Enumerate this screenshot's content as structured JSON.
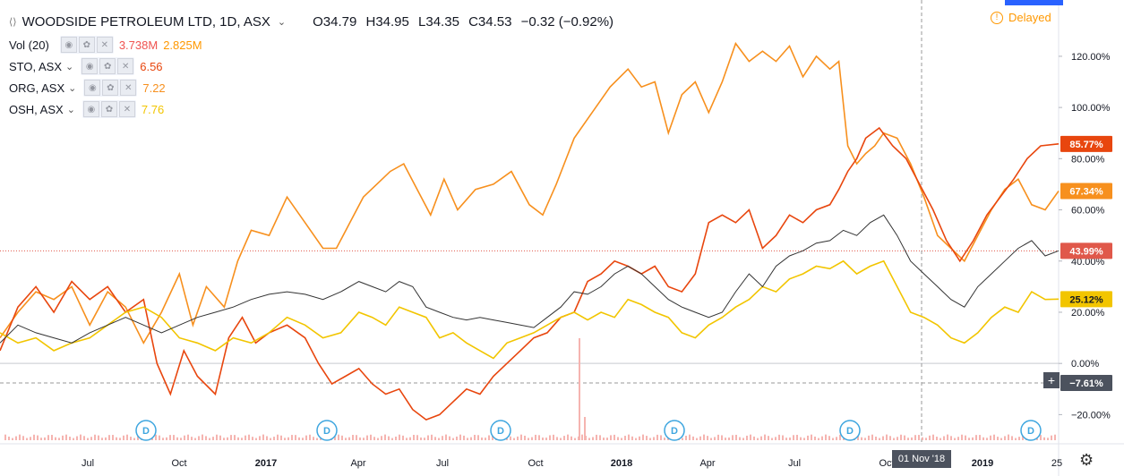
{
  "legend": {
    "main": {
      "symbol": "WOODSIDE PETROLEUM LTD, 1D, ASX",
      "open": "O34.79",
      "high": "H34.95",
      "low": "L34.35",
      "close": "C34.53",
      "change": "−0.32 (−0.92%)"
    },
    "vol": {
      "label": "Vol (20)",
      "value1": "3.738M",
      "value2": "2.825M",
      "color1": "#ef5350",
      "color2": "#ff9800"
    },
    "rows": [
      {
        "name": "STO, ASX",
        "value": "6.56",
        "color": "#e8460e"
      },
      {
        "name": "ORG, ASX",
        "value": "7.22",
        "color": "#f7901e"
      },
      {
        "name": "OSH, ASX",
        "value": "7.76",
        "color": "#f2c500"
      }
    ],
    "chevron_icon": "chevron-down-icon",
    "control_icons": [
      "eye-icon",
      "gear-icon",
      "close-icon"
    ]
  },
  "delayed": {
    "label": "Delayed",
    "icon": "exclamation-icon"
  },
  "crosshair_date": "01 Nov '18",
  "plus_icon": "plus-icon",
  "settings_icon": "gear-icon",
  "chart_data": {
    "type": "line",
    "x_ticks": [
      "Jul",
      "Oct",
      "2017",
      "Apr",
      "Jul",
      "Oct",
      "2018",
      "Apr",
      "Jul",
      "Oct",
      "2019",
      "25"
    ],
    "y_ticks": [
      "120.00%",
      "100.00%",
      "80.00%",
      "60.00%",
      "40.00%",
      "20.00%",
      "0.00%",
      "−20.00%"
    ],
    "ylim": [
      -30,
      135
    ],
    "xlim": [
      0,
      1180
    ],
    "series": [
      {
        "name": "ORG, ASX",
        "color": "#f7901e",
        "label": "67.34%",
        "values": [
          [
            0,
            10
          ],
          [
            20,
            20
          ],
          [
            40,
            28
          ],
          [
            60,
            25
          ],
          [
            80,
            30
          ],
          [
            100,
            15
          ],
          [
            120,
            28
          ],
          [
            140,
            22
          ],
          [
            160,
            8
          ],
          [
            180,
            20
          ],
          [
            200,
            35
          ],
          [
            215,
            15
          ],
          [
            230,
            30
          ],
          [
            250,
            22
          ],
          [
            265,
            40
          ],
          [
            280,
            52
          ],
          [
            300,
            50
          ],
          [
            320,
            65
          ],
          [
            340,
            55
          ],
          [
            360,
            45
          ],
          [
            375,
            45
          ],
          [
            390,
            55
          ],
          [
            405,
            65
          ],
          [
            420,
            70
          ],
          [
            435,
            75
          ],
          [
            450,
            78
          ],
          [
            465,
            68
          ],
          [
            480,
            58
          ],
          [
            495,
            72
          ],
          [
            510,
            60
          ],
          [
            530,
            68
          ],
          [
            550,
            70
          ],
          [
            570,
            75
          ],
          [
            590,
            62
          ],
          [
            605,
            58
          ],
          [
            620,
            70
          ],
          [
            640,
            88
          ],
          [
            660,
            98
          ],
          [
            680,
            108
          ],
          [
            700,
            115
          ],
          [
            715,
            108
          ],
          [
            730,
            110
          ],
          [
            745,
            90
          ],
          [
            760,
            105
          ],
          [
            775,
            110
          ],
          [
            790,
            98
          ],
          [
            805,
            110
          ],
          [
            820,
            125
          ],
          [
            835,
            118
          ],
          [
            850,
            122
          ],
          [
            865,
            118
          ],
          [
            880,
            124
          ],
          [
            895,
            112
          ],
          [
            910,
            120
          ],
          [
            925,
            115
          ],
          [
            935,
            118
          ],
          [
            945,
            85
          ],
          [
            955,
            78
          ],
          [
            965,
            82
          ],
          [
            975,
            85
          ],
          [
            985,
            90
          ],
          [
            1000,
            88
          ],
          [
            1015,
            78
          ],
          [
            1030,
            65
          ],
          [
            1045,
            50
          ],
          [
            1060,
            45
          ],
          [
            1075,
            40
          ],
          [
            1090,
            50
          ],
          [
            1105,
            60
          ],
          [
            1120,
            68
          ],
          [
            1135,
            72
          ],
          [
            1150,
            62
          ],
          [
            1165,
            60
          ],
          [
            1180,
            67.34
          ]
        ]
      },
      {
        "name": "STO, ASX",
        "color": "#e8460e",
        "label": "85.77%",
        "values": [
          [
            0,
            5
          ],
          [
            20,
            22
          ],
          [
            40,
            30
          ],
          [
            60,
            20
          ],
          [
            80,
            32
          ],
          [
            100,
            25
          ],
          [
            120,
            30
          ],
          [
            140,
            20
          ],
          [
            160,
            25
          ],
          [
            175,
            0
          ],
          [
            190,
            -12
          ],
          [
            205,
            5
          ],
          [
            220,
            -5
          ],
          [
            240,
            -12
          ],
          [
            255,
            10
          ],
          [
            270,
            18
          ],
          [
            285,
            8
          ],
          [
            300,
            12
          ],
          [
            320,
            15
          ],
          [
            340,
            10
          ],
          [
            355,
            0
          ],
          [
            370,
            -8
          ],
          [
            385,
            -5
          ],
          [
            400,
            -2
          ],
          [
            415,
            -8
          ],
          [
            430,
            -12
          ],
          [
            445,
            -10
          ],
          [
            460,
            -18
          ],
          [
            475,
            -22
          ],
          [
            490,
            -20
          ],
          [
            505,
            -15
          ],
          [
            520,
            -10
          ],
          [
            535,
            -12
          ],
          [
            550,
            -5
          ],
          [
            565,
            0
          ],
          [
            580,
            5
          ],
          [
            595,
            10
          ],
          [
            610,
            12
          ],
          [
            625,
            18
          ],
          [
            640,
            20
          ],
          [
            655,
            32
          ],
          [
            670,
            35
          ],
          [
            685,
            40
          ],
          [
            700,
            38
          ],
          [
            715,
            35
          ],
          [
            730,
            38
          ],
          [
            745,
            30
          ],
          [
            760,
            28
          ],
          [
            775,
            35
          ],
          [
            790,
            55
          ],
          [
            805,
            58
          ],
          [
            820,
            55
          ],
          [
            835,
            60
          ],
          [
            850,
            45
          ],
          [
            865,
            50
          ],
          [
            880,
            58
          ],
          [
            895,
            55
          ],
          [
            910,
            60
          ],
          [
            925,
            62
          ],
          [
            935,
            68
          ],
          [
            945,
            75
          ],
          [
            955,
            80
          ],
          [
            965,
            88
          ],
          [
            980,
            92
          ],
          [
            995,
            85
          ],
          [
            1010,
            80
          ],
          [
            1025,
            70
          ],
          [
            1040,
            60
          ],
          [
            1055,
            48
          ],
          [
            1070,
            40
          ],
          [
            1085,
            48
          ],
          [
            1100,
            58
          ],
          [
            1115,
            65
          ],
          [
            1130,
            72
          ],
          [
            1145,
            80
          ],
          [
            1160,
            85
          ],
          [
            1180,
            85.77
          ]
        ]
      },
      {
        "name": "OSH, ASX",
        "color": "#f2c500",
        "label": "25.12%",
        "values": [
          [
            0,
            12
          ],
          [
            20,
            8
          ],
          [
            40,
            10
          ],
          [
            60,
            5
          ],
          [
            80,
            8
          ],
          [
            100,
            10
          ],
          [
            120,
            15
          ],
          [
            140,
            20
          ],
          [
            160,
            22
          ],
          [
            180,
            18
          ],
          [
            200,
            10
          ],
          [
            220,
            8
          ],
          [
            240,
            5
          ],
          [
            260,
            10
          ],
          [
            280,
            8
          ],
          [
            300,
            12
          ],
          [
            320,
            18
          ],
          [
            340,
            15
          ],
          [
            360,
            10
          ],
          [
            380,
            12
          ],
          [
            400,
            20
          ],
          [
            415,
            18
          ],
          [
            430,
            15
          ],
          [
            445,
            22
          ],
          [
            460,
            20
          ],
          [
            475,
            18
          ],
          [
            490,
            10
          ],
          [
            505,
            12
          ],
          [
            520,
            8
          ],
          [
            535,
            5
          ],
          [
            550,
            2
          ],
          [
            565,
            8
          ],
          [
            580,
            10
          ],
          [
            595,
            12
          ],
          [
            610,
            15
          ],
          [
            625,
            18
          ],
          [
            640,
            20
          ],
          [
            655,
            17
          ],
          [
            670,
            20
          ],
          [
            685,
            18
          ],
          [
            700,
            25
          ],
          [
            715,
            23
          ],
          [
            730,
            20
          ],
          [
            745,
            18
          ],
          [
            760,
            12
          ],
          [
            775,
            10
          ],
          [
            790,
            15
          ],
          [
            805,
            18
          ],
          [
            820,
            22
          ],
          [
            835,
            25
          ],
          [
            850,
            30
          ],
          [
            865,
            28
          ],
          [
            880,
            33
          ],
          [
            895,
            35
          ],
          [
            910,
            38
          ],
          [
            925,
            37
          ],
          [
            940,
            40
          ],
          [
            955,
            35
          ],
          [
            970,
            38
          ],
          [
            985,
            40
          ],
          [
            1000,
            30
          ],
          [
            1015,
            20
          ],
          [
            1030,
            18
          ],
          [
            1045,
            15
          ],
          [
            1060,
            10
          ],
          [
            1075,
            8
          ],
          [
            1090,
            12
          ],
          [
            1105,
            18
          ],
          [
            1120,
            22
          ],
          [
            1135,
            20
          ],
          [
            1150,
            28
          ],
          [
            1165,
            25
          ],
          [
            1180,
            25.12
          ]
        ]
      },
      {
        "name": "WOODSIDE PETROLEUM LTD",
        "color": "#333333",
        "label": "43.99%",
        "values": [
          [
            0,
            8
          ],
          [
            20,
            15
          ],
          [
            40,
            12
          ],
          [
            60,
            10
          ],
          [
            80,
            8
          ],
          [
            100,
            12
          ],
          [
            120,
            15
          ],
          [
            140,
            18
          ],
          [
            160,
            15
          ],
          [
            180,
            12
          ],
          [
            200,
            15
          ],
          [
            220,
            18
          ],
          [
            240,
            20
          ],
          [
            260,
            22
          ],
          [
            280,
            25
          ],
          [
            300,
            27
          ],
          [
            320,
            28
          ],
          [
            340,
            27
          ],
          [
            360,
            25
          ],
          [
            380,
            28
          ],
          [
            400,
            32
          ],
          [
            415,
            30
          ],
          [
            430,
            28
          ],
          [
            445,
            32
          ],
          [
            460,
            30
          ],
          [
            475,
            22
          ],
          [
            490,
            20
          ],
          [
            505,
            18
          ],
          [
            520,
            17
          ],
          [
            535,
            18
          ],
          [
            550,
            17
          ],
          [
            565,
            16
          ],
          [
            580,
            15
          ],
          [
            595,
            14
          ],
          [
            610,
            18
          ],
          [
            625,
            22
          ],
          [
            640,
            28
          ],
          [
            655,
            27
          ],
          [
            670,
            30
          ],
          [
            685,
            35
          ],
          [
            700,
            38
          ],
          [
            715,
            35
          ],
          [
            730,
            30
          ],
          [
            745,
            25
          ],
          [
            760,
            22
          ],
          [
            775,
            20
          ],
          [
            790,
            18
          ],
          [
            805,
            20
          ],
          [
            820,
            28
          ],
          [
            835,
            35
          ],
          [
            850,
            30
          ],
          [
            865,
            38
          ],
          [
            880,
            42
          ],
          [
            895,
            44
          ],
          [
            910,
            47
          ],
          [
            925,
            48
          ],
          [
            940,
            52
          ],
          [
            955,
            50
          ],
          [
            970,
            55
          ],
          [
            985,
            58
          ],
          [
            1000,
            50
          ],
          [
            1015,
            40
          ],
          [
            1030,
            35
          ],
          [
            1045,
            30
          ],
          [
            1060,
            25
          ],
          [
            1075,
            22
          ],
          [
            1090,
            30
          ],
          [
            1105,
            35
          ],
          [
            1120,
            40
          ],
          [
            1135,
            45
          ],
          [
            1150,
            48
          ],
          [
            1165,
            42
          ],
          [
            1180,
            43.99
          ]
        ]
      }
    ],
    "annotations": [
      {
        "text": "−7.61%",
        "y": -7.61
      },
      {
        "text": "43.99%",
        "y": 43.99
      }
    ],
    "dividend_markers": [
      160,
      362,
      556,
      750,
      946,
      1148
    ],
    "dividend_label": "D"
  }
}
